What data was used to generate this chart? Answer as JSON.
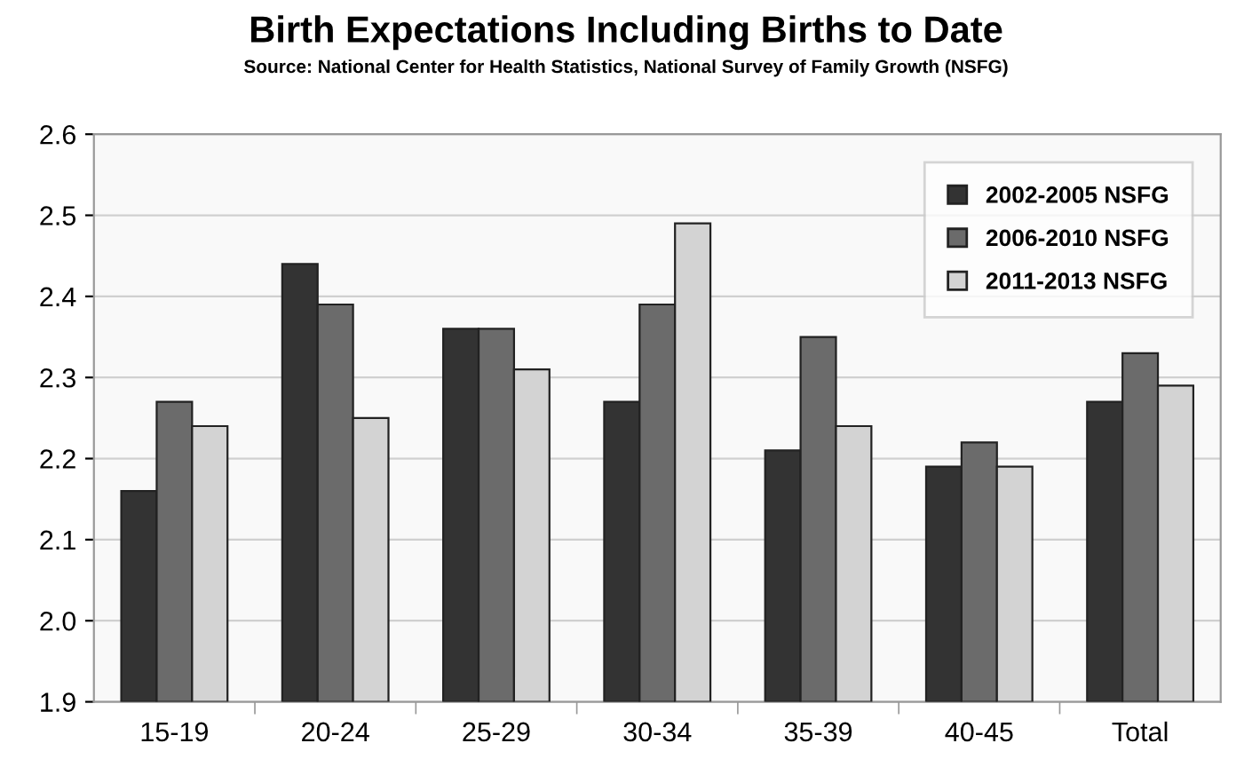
{
  "chart_data": {
    "type": "bar",
    "title": "Birth Expectations Including Births to Date",
    "subtitle": "Source: National Center for Health Statistics, National Survey of Family Growth (NSFG)",
    "categories": [
      "15-19",
      "20-24",
      "25-29",
      "30-34",
      "35-39",
      "40-45",
      "Total"
    ],
    "series": [
      {
        "name": "2002-2005 NSFG",
        "color": "#333333",
        "values": [
          2.16,
          2.44,
          2.36,
          2.27,
          2.21,
          2.19,
          2.27
        ]
      },
      {
        "name": "2006-2010 NSFG",
        "color": "#6b6b6b",
        "values": [
          2.27,
          2.39,
          2.36,
          2.39,
          2.35,
          2.22,
          2.33
        ]
      },
      {
        "name": "2011-2013 NSFG",
        "color": "#d3d3d3",
        "values": [
          2.24,
          2.25,
          2.31,
          2.49,
          2.24,
          2.19,
          2.29
        ]
      }
    ],
    "ylim": [
      1.9,
      2.6
    ],
    "yticks": [
      {
        "value": 1.9,
        "label": "1.9"
      },
      {
        "value": 2.0,
        "label": "2.0"
      },
      {
        "value": 2.1,
        "label": "2.1"
      },
      {
        "value": 2.2,
        "label": "2.2"
      },
      {
        "value": 2.3,
        "label": "2.3"
      },
      {
        "value": 2.4,
        "label": "2.4"
      },
      {
        "value": 2.5,
        "label": "2.5"
      },
      {
        "value": 2.6,
        "label": "2.6"
      }
    ],
    "grid": "y",
    "legend": "top right"
  }
}
